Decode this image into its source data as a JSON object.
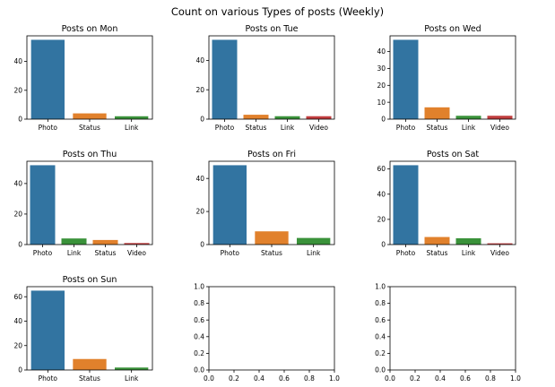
{
  "figure": {
    "title": "Count on various Types of posts (Weekly)"
  },
  "colors": {
    "Photo": "#3274a1",
    "Status": "#e1812c",
    "Link": "#3a923a",
    "Video": "#c03d3e"
  },
  "chart_data": [
    {
      "type": "bar",
      "title": "Posts on Mon",
      "categories": [
        "Photo",
        "Status",
        "Link"
      ],
      "values": [
        55,
        4,
        2
      ],
      "ylim": [
        0,
        57.75
      ],
      "yticks": [
        0,
        20,
        40
      ]
    },
    {
      "type": "bar",
      "title": "Posts on Tue",
      "categories": [
        "Photo",
        "Status",
        "Link",
        "Video"
      ],
      "values": [
        54,
        3,
        2,
        2
      ],
      "ylim": [
        0,
        56.7
      ],
      "yticks": [
        0,
        20,
        40
      ]
    },
    {
      "type": "bar",
      "title": "Posts on Wed",
      "categories": [
        "Photo",
        "Status",
        "Link",
        "Video"
      ],
      "values": [
        47,
        7,
        2,
        2
      ],
      "ylim": [
        0,
        49.35
      ],
      "yticks": [
        0,
        10,
        20,
        30,
        40
      ]
    },
    {
      "type": "bar",
      "title": "Posts on Thu",
      "categories": [
        "Photo",
        "Link",
        "Status",
        "Video"
      ],
      "values": [
        52,
        4,
        3,
        1
      ],
      "ylim": [
        0,
        54.6
      ],
      "yticks": [
        0,
        20,
        40
      ]
    },
    {
      "type": "bar",
      "title": "Posts on Fri",
      "categories": [
        "Photo",
        "Status",
        "Link"
      ],
      "values": [
        48,
        8,
        4
      ],
      "ylim": [
        0,
        50.4
      ],
      "yticks": [
        0,
        20,
        40
      ]
    },
    {
      "type": "bar",
      "title": "Posts on Sat",
      "categories": [
        "Photo",
        "Status",
        "Link",
        "Video"
      ],
      "values": [
        63,
        6,
        5,
        1
      ],
      "ylim": [
        0,
        66.15
      ],
      "yticks": [
        0,
        20,
        40,
        60
      ]
    },
    {
      "type": "bar",
      "title": "Posts on Sun",
      "categories": [
        "Photo",
        "Status",
        "Link"
      ],
      "values": [
        65,
        9,
        2
      ],
      "ylim": [
        0,
        68.25
      ],
      "yticks": [
        0,
        20,
        40,
        60
      ]
    },
    {
      "type": "empty",
      "xlim": [
        0,
        1
      ],
      "ylim": [
        0,
        1
      ],
      "xticks": [
        "0.0",
        "0.2",
        "0.4",
        "0.6",
        "0.8",
        "1.0"
      ],
      "yticks": [
        "0.0",
        "0.2",
        "0.4",
        "0.6",
        "0.8",
        "1.0"
      ]
    },
    {
      "type": "empty",
      "xlim": [
        0,
        1
      ],
      "ylim": [
        0,
        1
      ],
      "xticks": [
        "0.0",
        "0.2",
        "0.4",
        "0.6",
        "0.8",
        "1.0"
      ],
      "yticks": [
        "0.0",
        "0.2",
        "0.4",
        "0.6",
        "0.8",
        "1.0"
      ]
    }
  ]
}
